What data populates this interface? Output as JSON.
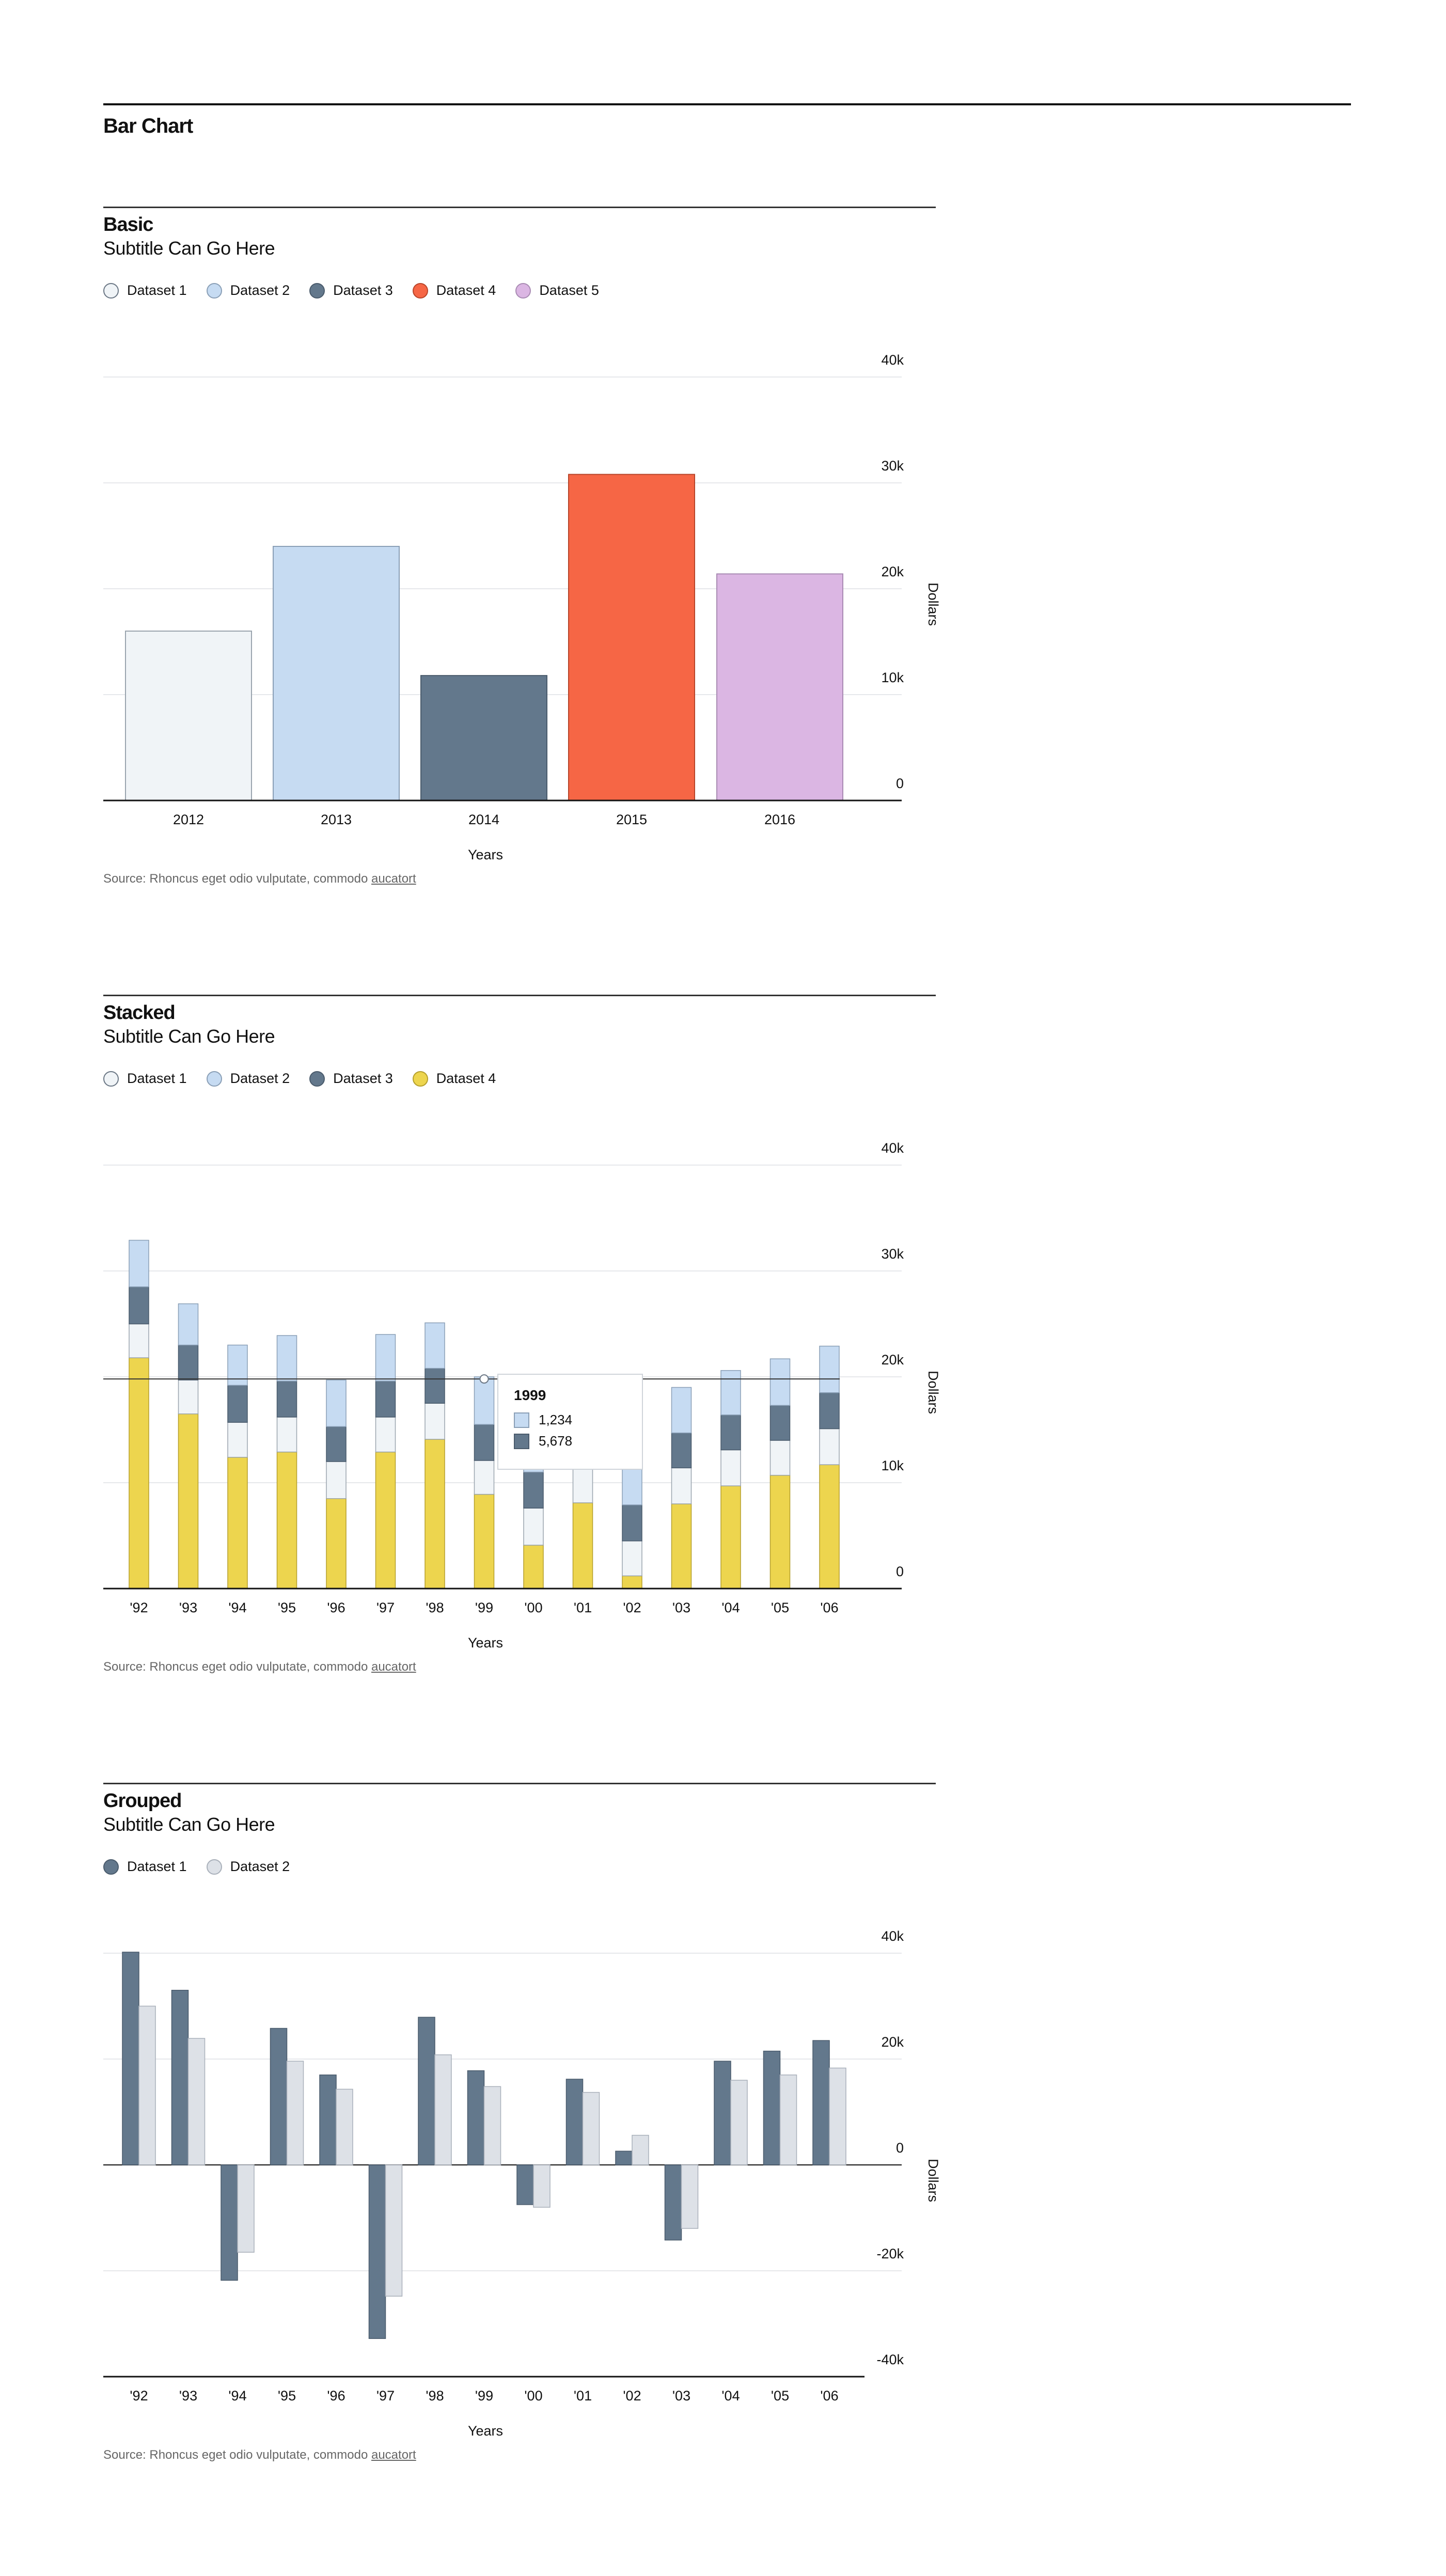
{
  "page": {
    "title": "Bar Chart"
  },
  "colors": {
    "dataset1": "#f0f4f7",
    "dataset1_stroke": "#8a96a3",
    "dataset2": "#c6dbf2",
    "dataset3": "#63788c",
    "dataset4_basic": "#f66645",
    "dataset5": "#dbb6e3",
    "dataset4_stacked": "#edd54e",
    "grouped2": "#dde1e7",
    "grid": "#e6e8eb",
    "axis": "#111111"
  },
  "sections": [
    {
      "title": "Basic",
      "subtitle": "Subtitle Can Go Here",
      "legend": [
        "Dataset 1",
        "Dataset 2",
        "Dataset 3",
        "Dataset 4",
        "Dataset 5"
      ],
      "source_prefix": "Source: Rhoncus eget odio vulputate, commodo ",
      "source_link": "aucatort"
    },
    {
      "title": "Stacked",
      "subtitle": "Subtitle Can Go Here",
      "legend": [
        "Dataset 1",
        "Dataset 2",
        "Dataset 3",
        "Dataset 4"
      ],
      "source_prefix": "Source: Rhoncus eget odio vulputate, commodo ",
      "source_link": "aucatort",
      "tooltip": {
        "title": "1999",
        "rows": [
          {
            "label": "1,234"
          },
          {
            "label": "5,678"
          }
        ]
      }
    },
    {
      "title": "Grouped",
      "subtitle": "Subtitle Can Go Here",
      "legend": [
        "Dataset 1",
        "Dataset 2"
      ],
      "source_prefix": "Source: Rhoncus eget odio vulputate, commodo ",
      "source_link": "aucatort"
    }
  ],
  "chart_data": [
    {
      "type": "bar",
      "title": "Basic",
      "subtitle": "Subtitle Can Go Here",
      "xlabel": "Years",
      "ylabel": "Dollars",
      "ylim": [
        0,
        40000
      ],
      "yticks": [
        0,
        10000,
        20000,
        30000,
        40000
      ],
      "ytick_labels": [
        "0",
        "10k",
        "20k",
        "30k",
        "40k"
      ],
      "categories": [
        "2012",
        "2013",
        "2014",
        "2015",
        "2016"
      ],
      "series": [
        {
          "name": "Dataset 1",
          "values": [
            16000,
            null,
            null,
            null,
            null
          ]
        },
        {
          "name": "Dataset 2",
          "values": [
            null,
            24000,
            null,
            null,
            null
          ]
        },
        {
          "name": "Dataset 3",
          "values": [
            null,
            null,
            11800,
            null,
            null
          ]
        },
        {
          "name": "Dataset 4",
          "values": [
            null,
            null,
            null,
            30800,
            null
          ]
        },
        {
          "name": "Dataset 5",
          "values": [
            null,
            null,
            null,
            null,
            21400
          ]
        }
      ],
      "grid": true,
      "legend": "top-left"
    },
    {
      "type": "bar",
      "stacked": true,
      "title": "Stacked",
      "subtitle": "Subtitle Can Go Here",
      "xlabel": "Years",
      "ylabel": "Dollars",
      "ylim": [
        0,
        40000
      ],
      "yticks": [
        0,
        10000,
        20000,
        30000,
        40000
      ],
      "ytick_labels": [
        "0",
        "10k",
        "20k",
        "30k",
        "40k"
      ],
      "categories": [
        "'92",
        "'93",
        "'94",
        "'95",
        "'96",
        "'97",
        "'98",
        "'99",
        "'00",
        "'01",
        "'02",
        "'03",
        "'04",
        "'05",
        "'06"
      ],
      "series": [
        {
          "name": "Dataset 4",
          "values": [
            21800,
            16500,
            12400,
            12900,
            8500,
            12900,
            14100,
            8900,
            4100,
            8100,
            1200,
            8000,
            9700,
            10700,
            11700
          ]
        },
        {
          "name": "Dataset 1",
          "values": [
            3200,
            3200,
            3300,
            3300,
            3500,
            3300,
            3400,
            3200,
            3500,
            3300,
            3300,
            3400,
            3400,
            3300,
            3400
          ]
        },
        {
          "name": "Dataset 3",
          "values": [
            3500,
            3300,
            3500,
            3400,
            3300,
            3400,
            3300,
            3400,
            3400,
            3400,
            3400,
            3300,
            3300,
            3300,
            3400
          ]
        },
        {
          "name": "Dataset 2",
          "values": [
            4400,
            3900,
            3800,
            4300,
            4400,
            4400,
            4300,
            4500,
            4400,
            4100,
            4300,
            4300,
            4200,
            4400,
            4400
          ]
        }
      ],
      "highlight_x": "'99",
      "highlight_y": 19800,
      "grid": true,
      "legend": "top-left"
    },
    {
      "type": "bar",
      "grouped": true,
      "title": "Grouped",
      "subtitle": "Subtitle Can Go Here",
      "xlabel": "Years",
      "ylabel": "Dollars",
      "ylim": [
        -40000,
        40000
      ],
      "yticks": [
        -40000,
        -20000,
        0,
        20000,
        40000
      ],
      "ytick_labels": [
        "-40k",
        "-20k",
        "0",
        "20k",
        "40k"
      ],
      "categories": [
        "'92",
        "'93",
        "'94",
        "'95",
        "'96",
        "'97",
        "'98",
        "'99",
        "'00",
        "'01",
        "'02",
        "'03",
        "'04",
        "'05",
        "'06"
      ],
      "series": [
        {
          "name": "Dataset 1",
          "values": [
            40200,
            33000,
            -21800,
            25800,
            17000,
            -32800,
            27900,
            17800,
            -7500,
            16200,
            2600,
            -14200,
            19600,
            21500,
            23500
          ]
        },
        {
          "name": "Dataset 2",
          "values": [
            30000,
            23900,
            -16500,
            19600,
            14300,
            -24800,
            20800,
            14800,
            -8000,
            13700,
            5600,
            -12000,
            16000,
            17000,
            18300
          ]
        }
      ],
      "grid": true,
      "legend": "top-left"
    }
  ]
}
